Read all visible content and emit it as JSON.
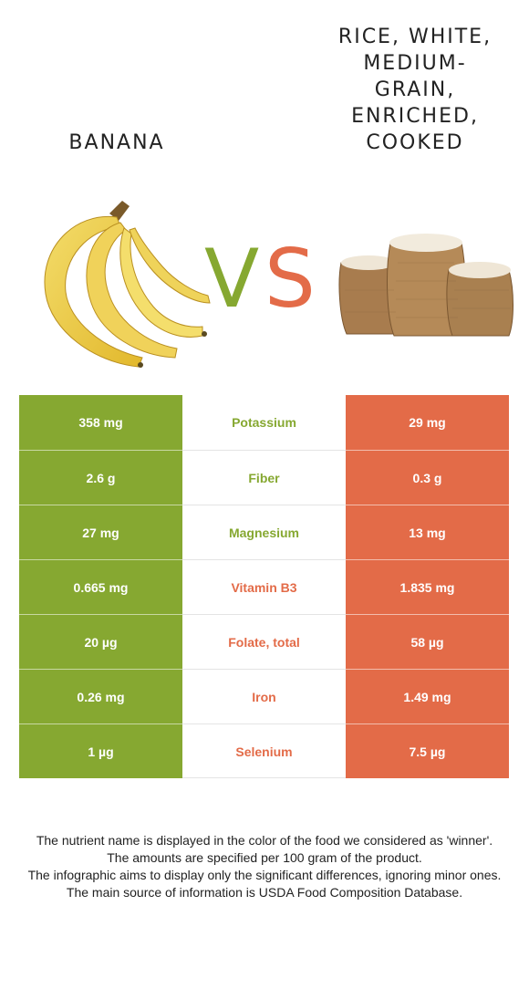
{
  "left_food": {
    "name": "Banana",
    "color": "#86a831"
  },
  "right_food": {
    "name": "Rice, white, medium-grain, enriched, cooked",
    "color": "#e36b48"
  },
  "vs": {
    "v": "V",
    "s": "S"
  },
  "rows": [
    {
      "nutrient": "Potassium",
      "left": "358 mg",
      "right": "29 mg",
      "winner": "left"
    },
    {
      "nutrient": "Fiber",
      "left": "2.6 g",
      "right": "0.3 g",
      "winner": "left"
    },
    {
      "nutrient": "Magnesium",
      "left": "27 mg",
      "right": "13 mg",
      "winner": "left"
    },
    {
      "nutrient": "Vitamin B3",
      "left": "0.665 mg",
      "right": "1.835 mg",
      "winner": "right"
    },
    {
      "nutrient": "Folate, total",
      "left": "20 µg",
      "right": "58 µg",
      "winner": "right"
    },
    {
      "nutrient": "Iron",
      "left": "0.26 mg",
      "right": "1.49 mg",
      "winner": "right"
    },
    {
      "nutrient": "Selenium",
      "left": "1 µg",
      "right": "7.5 µg",
      "winner": "right"
    }
  ],
  "footer": [
    "The nutrient name is displayed in the color of the food we considered as 'winner'.",
    "The amounts are specified per 100 gram of the product.",
    "The infographic aims to display only the significant differences, ignoring minor ones.",
    "The main source of information is USDA Food Composition Database."
  ]
}
